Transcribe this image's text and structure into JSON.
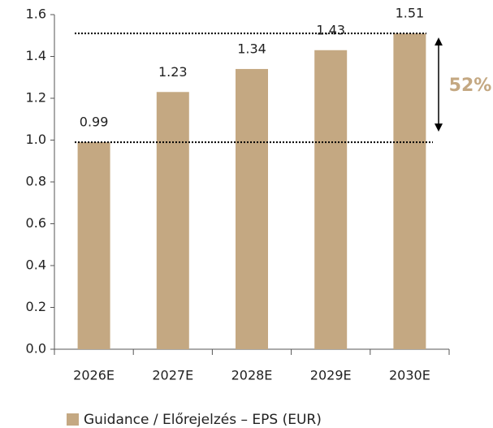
{
  "chart_data": {
    "type": "bar",
    "categories": [
      "2026E",
      "2027E",
      "2028E",
      "2029E",
      "2030E"
    ],
    "series": [
      {
        "name": "Guidance / Előrejelzés – EPS (EUR)",
        "color": "#c4a882",
        "values": [
          0.99,
          1.23,
          1.34,
          1.43,
          1.51
        ]
      }
    ],
    "ylim": [
      0,
      1.6
    ],
    "yticks": [
      {
        "value": 0,
        "label": "0.0"
      },
      0.2,
      0.4,
      0.6,
      0.8,
      {
        "value": 1,
        "label": "1.0"
      },
      1.2,
      1.4,
      1.6
    ],
    "annotations": [
      "52%"
    ]
  }
}
